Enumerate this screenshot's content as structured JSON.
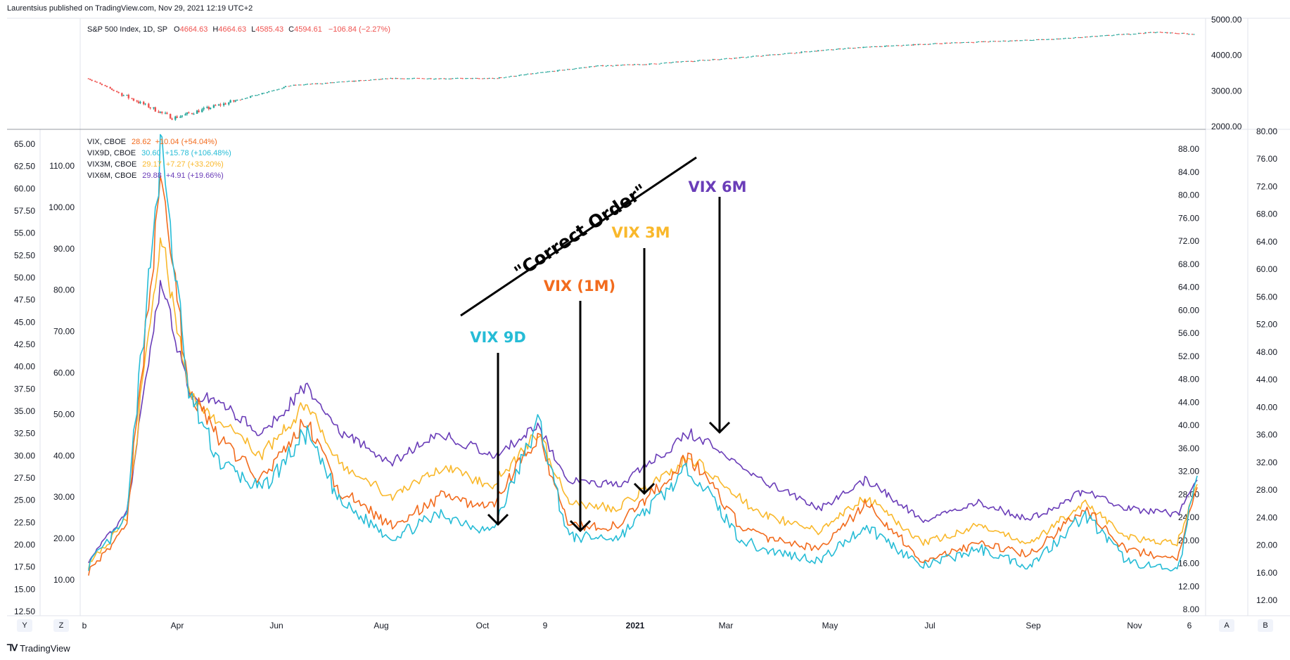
{
  "header": {
    "text": "Laurentsius published on TradingView.com, Nov 29, 2021 12:19 UTC+2"
  },
  "footer": {
    "brand": "TradingView",
    "logo_icon": "tradingview-logo-icon"
  },
  "corner_buttons": {
    "y": "Y",
    "z": "Z",
    "a": "A",
    "b": "B"
  },
  "colors": {
    "vix9d": "#26bcd6",
    "vix": "#f26b1d",
    "vix3m": "#f9b82b",
    "vix6m": "#6a3db8",
    "up": "#26a69a",
    "down": "#ef5350",
    "annotation": "#000000"
  },
  "spx_legend": {
    "name": "S&P 500 Index, 1D, SP",
    "o_label": "O",
    "o": "4664.63",
    "h_label": "H",
    "h": "4664.63",
    "l_label": "L",
    "l": "4585.43",
    "c_label": "C",
    "c": "4594.61",
    "change": "−106.84 (−2.27%)"
  },
  "vix_legend": [
    {
      "name": "VIX, CBOE",
      "value": "28.62",
      "change": "+10.04 (+54.04%)",
      "color": "#f26b1d"
    },
    {
      "name": "VIX9D, CBOE",
      "value": "30.60",
      "change": "+15.78 (+106.48%)",
      "color": "#26bcd6"
    },
    {
      "name": "VIX3M, CBOE",
      "value": "29.17",
      "change": "+7.27 (+33.20%)",
      "color": "#f9b82b"
    },
    {
      "name": "VIX6M, CBOE",
      "value": "29.88",
      "change": "+4.91 (+19.66%)",
      "color": "#6a3db8"
    }
  ],
  "annotations": {
    "correct_order": "\"Correct Order\"",
    "vix9d": "VIX 9D",
    "vix1m": "VIX (1M)",
    "vix3m": "VIX 3M",
    "vix6m": "VIX 6M"
  },
  "chart_data": [
    {
      "type": "candlestick",
      "series": [
        {
          "name": "S&P 500 Index, 1D, SP"
        }
      ],
      "y_ticks": [
        "5000.00",
        "4000.00",
        "3000.00",
        "2000.00"
      ],
      "ylim": [
        2000,
        5000
      ],
      "x_ticks": [
        "b",
        "Apr",
        "Jun",
        "Aug",
        "Oct",
        "9",
        "2021",
        "Mar",
        "May",
        "Jul",
        "Sep",
        "Nov",
        "6"
      ],
      "x": [
        "2020-02",
        "2020-03-23",
        "2020-06",
        "2020-08",
        "2020-10",
        "2020-12",
        "2021-01",
        "2021-03",
        "2021-05",
        "2021-07",
        "2021-09",
        "2021-11",
        "2021-11-26"
      ],
      "values": [
        3350,
        2240,
        3150,
        3350,
        3350,
        3700,
        3750,
        3950,
        4200,
        4350,
        4450,
        4650,
        4594.61
      ]
    },
    {
      "type": "line",
      "left_axis_ticks": [
        "65.00",
        "62.50",
        "60.00",
        "57.50",
        "55.00",
        "52.50",
        "50.00",
        "47.50",
        "45.00",
        "42.50",
        "40.00",
        "37.50",
        "35.00",
        "32.50",
        "30.00",
        "27.50",
        "25.00",
        "22.50",
        "20.00",
        "17.50",
        "15.00",
        "12.50"
      ],
      "left_axis2_ticks": [
        "110.00",
        "100.00",
        "90.00",
        "80.00",
        "70.00",
        "60.00",
        "50.00",
        "40.00",
        "30.00",
        "20.00",
        "10.00"
      ],
      "right_axis_ticks": [
        "88.00",
        "84.00",
        "80.00",
        "76.00",
        "72.00",
        "68.00",
        "64.00",
        "60.00",
        "56.00",
        "52.00",
        "48.00",
        "44.00",
        "40.00",
        "36.00",
        "32.00",
        "28.00",
        "24.00",
        "20.00",
        "16.00",
        "12.00",
        "8.00"
      ],
      "right_axis2_ticks": [
        "80.00",
        "76.00",
        "72.00",
        "68.00",
        "64.00",
        "60.00",
        "56.00",
        "52.00",
        "48.00",
        "44.00",
        "40.00",
        "36.00",
        "32.00",
        "28.00",
        "24.00",
        "20.00",
        "16.00",
        "12.00"
      ],
      "ylim": [
        7,
        90
      ],
      "x": [
        "2020-02-01",
        "2020-02-24",
        "2020-03-16",
        "2020-04-01",
        "2020-04-20",
        "2020-05-15",
        "2020-06-11",
        "2020-07-01",
        "2020-08-01",
        "2020-08-31",
        "2020-09-30",
        "2020-10-28",
        "2020-11-15",
        "2020-12-15",
        "2021-01-27",
        "2021-02-25",
        "2021-03-10",
        "2021-04-15",
        "2021-05-12",
        "2021-06-15",
        "2021-07-19",
        "2021-08-18",
        "2021-09-20",
        "2021-10-15",
        "2021-11-15",
        "2021-11-26"
      ],
      "series": [
        {
          "name": "VIX9D, CBOE",
          "values": [
            15,
            23,
            88,
            45,
            33,
            28,
            38,
            26,
            20,
            24,
            21,
            40,
            20,
            20,
            32,
            20,
            18,
            16,
            22,
            15,
            18,
            15,
            24,
            16,
            14,
            30.6
          ]
        },
        {
          "name": "VIX, CBOE",
          "values": [
            14,
            22,
            82,
            46,
            37,
            30,
            40,
            28,
            22,
            27,
            25,
            38,
            22,
            22,
            34,
            22,
            20,
            18,
            26,
            16,
            19,
            17,
            25,
            18,
            16,
            28.62
          ]
        },
        {
          "name": "VIX3M, CBOE",
          "values": [
            15,
            23,
            72,
            45,
            40,
            34,
            43,
            33,
            27,
            32,
            29,
            38,
            26,
            25,
            34,
            27,
            24,
            21,
            27,
            19,
            22,
            19,
            26,
            20,
            19,
            29.17
          ]
        },
        {
          "name": "VIX6M, CBOE",
          "values": [
            16,
            24,
            65,
            45,
            43,
            38,
            46,
            38,
            33,
            38,
            34,
            39,
            30,
            29,
            38,
            33,
            30,
            25,
            30,
            23,
            26,
            23,
            28,
            25,
            24,
            29.88
          ]
        }
      ]
    }
  ]
}
